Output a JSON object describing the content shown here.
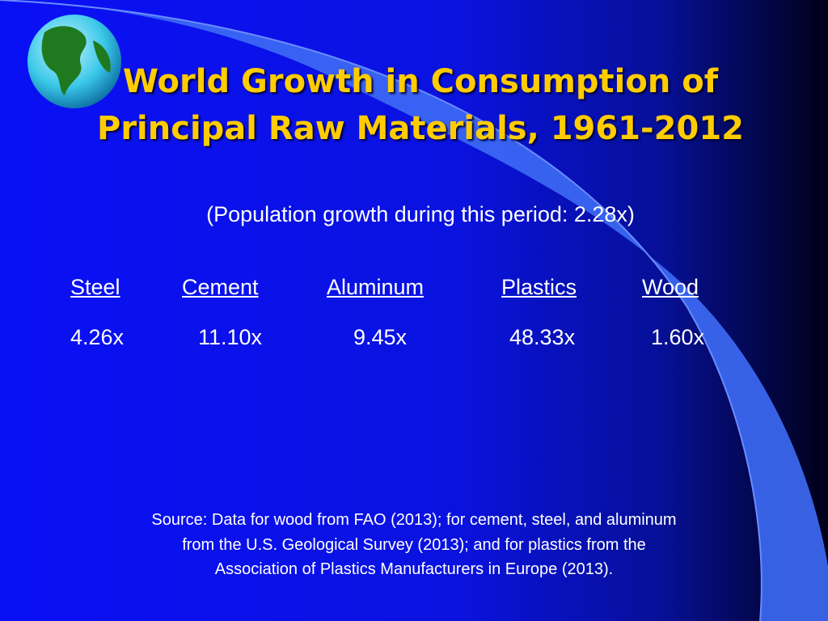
{
  "title": {
    "lines": [
      "World Growth in Consumption of",
      "Principal Raw Materials, 1961-2012"
    ]
  },
  "subtitle": "(Population growth during this period: 2.28x)",
  "table": {
    "headers": [
      "Steel",
      "Cement",
      "Aluminum",
      "Plastics",
      "Wood"
    ],
    "values": [
      "4.26x",
      "11.10x",
      "9.45x",
      "48.33x",
      "1.60x"
    ]
  },
  "source": {
    "lines": [
      "Source: Data for wood from FAO (2013); for cement, steel, and aluminum",
      "from the U.S. Geological Survey (2013); and for plastics from the",
      "Association of Plastics Manufacturers in Europe (2013)."
    ]
  }
}
